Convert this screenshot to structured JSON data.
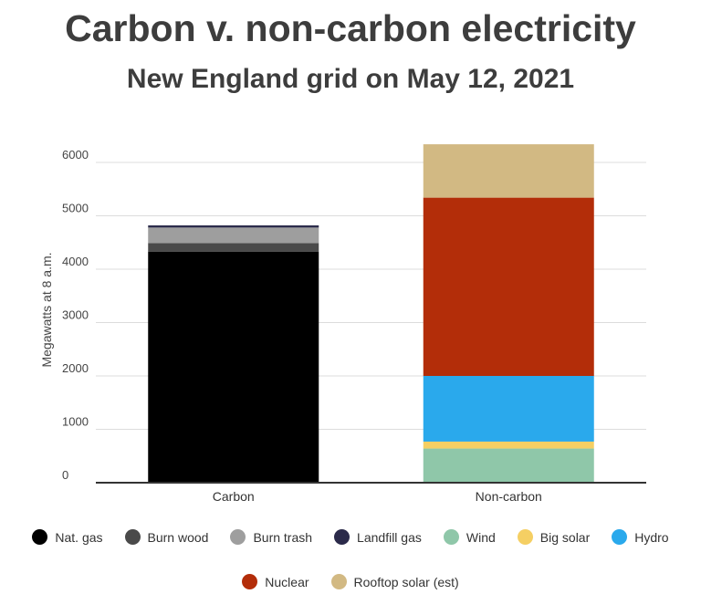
{
  "chart_data": {
    "type": "bar",
    "stacked": true,
    "title": "Carbon v. non-carbon electricity",
    "subtitle": "New England grid on May 12, 2021",
    "xlabel": "",
    "ylabel": "Megawatts at 8 a.m.",
    "ylim": [
      0,
      6000
    ],
    "yticks": [
      0,
      1000,
      2000,
      3000,
      4000,
      5000,
      6000
    ],
    "grid": true,
    "legend_position": "bottom",
    "categories": [
      "Carbon",
      "Non-carbon"
    ],
    "series": [
      {
        "name": "Nat. gas",
        "color": "#000000",
        "values": [
          4330,
          0
        ]
      },
      {
        "name": "Burn wood",
        "color": "#4a4a4a",
        "values": [
          160,
          0
        ]
      },
      {
        "name": "Burn trash",
        "color": "#9e9e9e",
        "values": [
          290,
          0
        ]
      },
      {
        "name": "Landfill gas",
        "color": "#2b2a4a",
        "values": [
          40,
          0
        ]
      },
      {
        "name": "Wind",
        "color": "#8fc7a9",
        "values": [
          0,
          640
        ]
      },
      {
        "name": "Big solar",
        "color": "#f5cf63",
        "values": [
          0,
          130
        ]
      },
      {
        "name": "Hydro",
        "color": "#2aa9ec",
        "values": [
          0,
          1230
        ]
      },
      {
        "name": "Nuclear",
        "color": "#b32d09",
        "values": [
          0,
          3340
        ]
      },
      {
        "name": "Rooftop solar (est)",
        "color": "#d2b983",
        "values": [
          0,
          1000
        ]
      }
    ]
  }
}
